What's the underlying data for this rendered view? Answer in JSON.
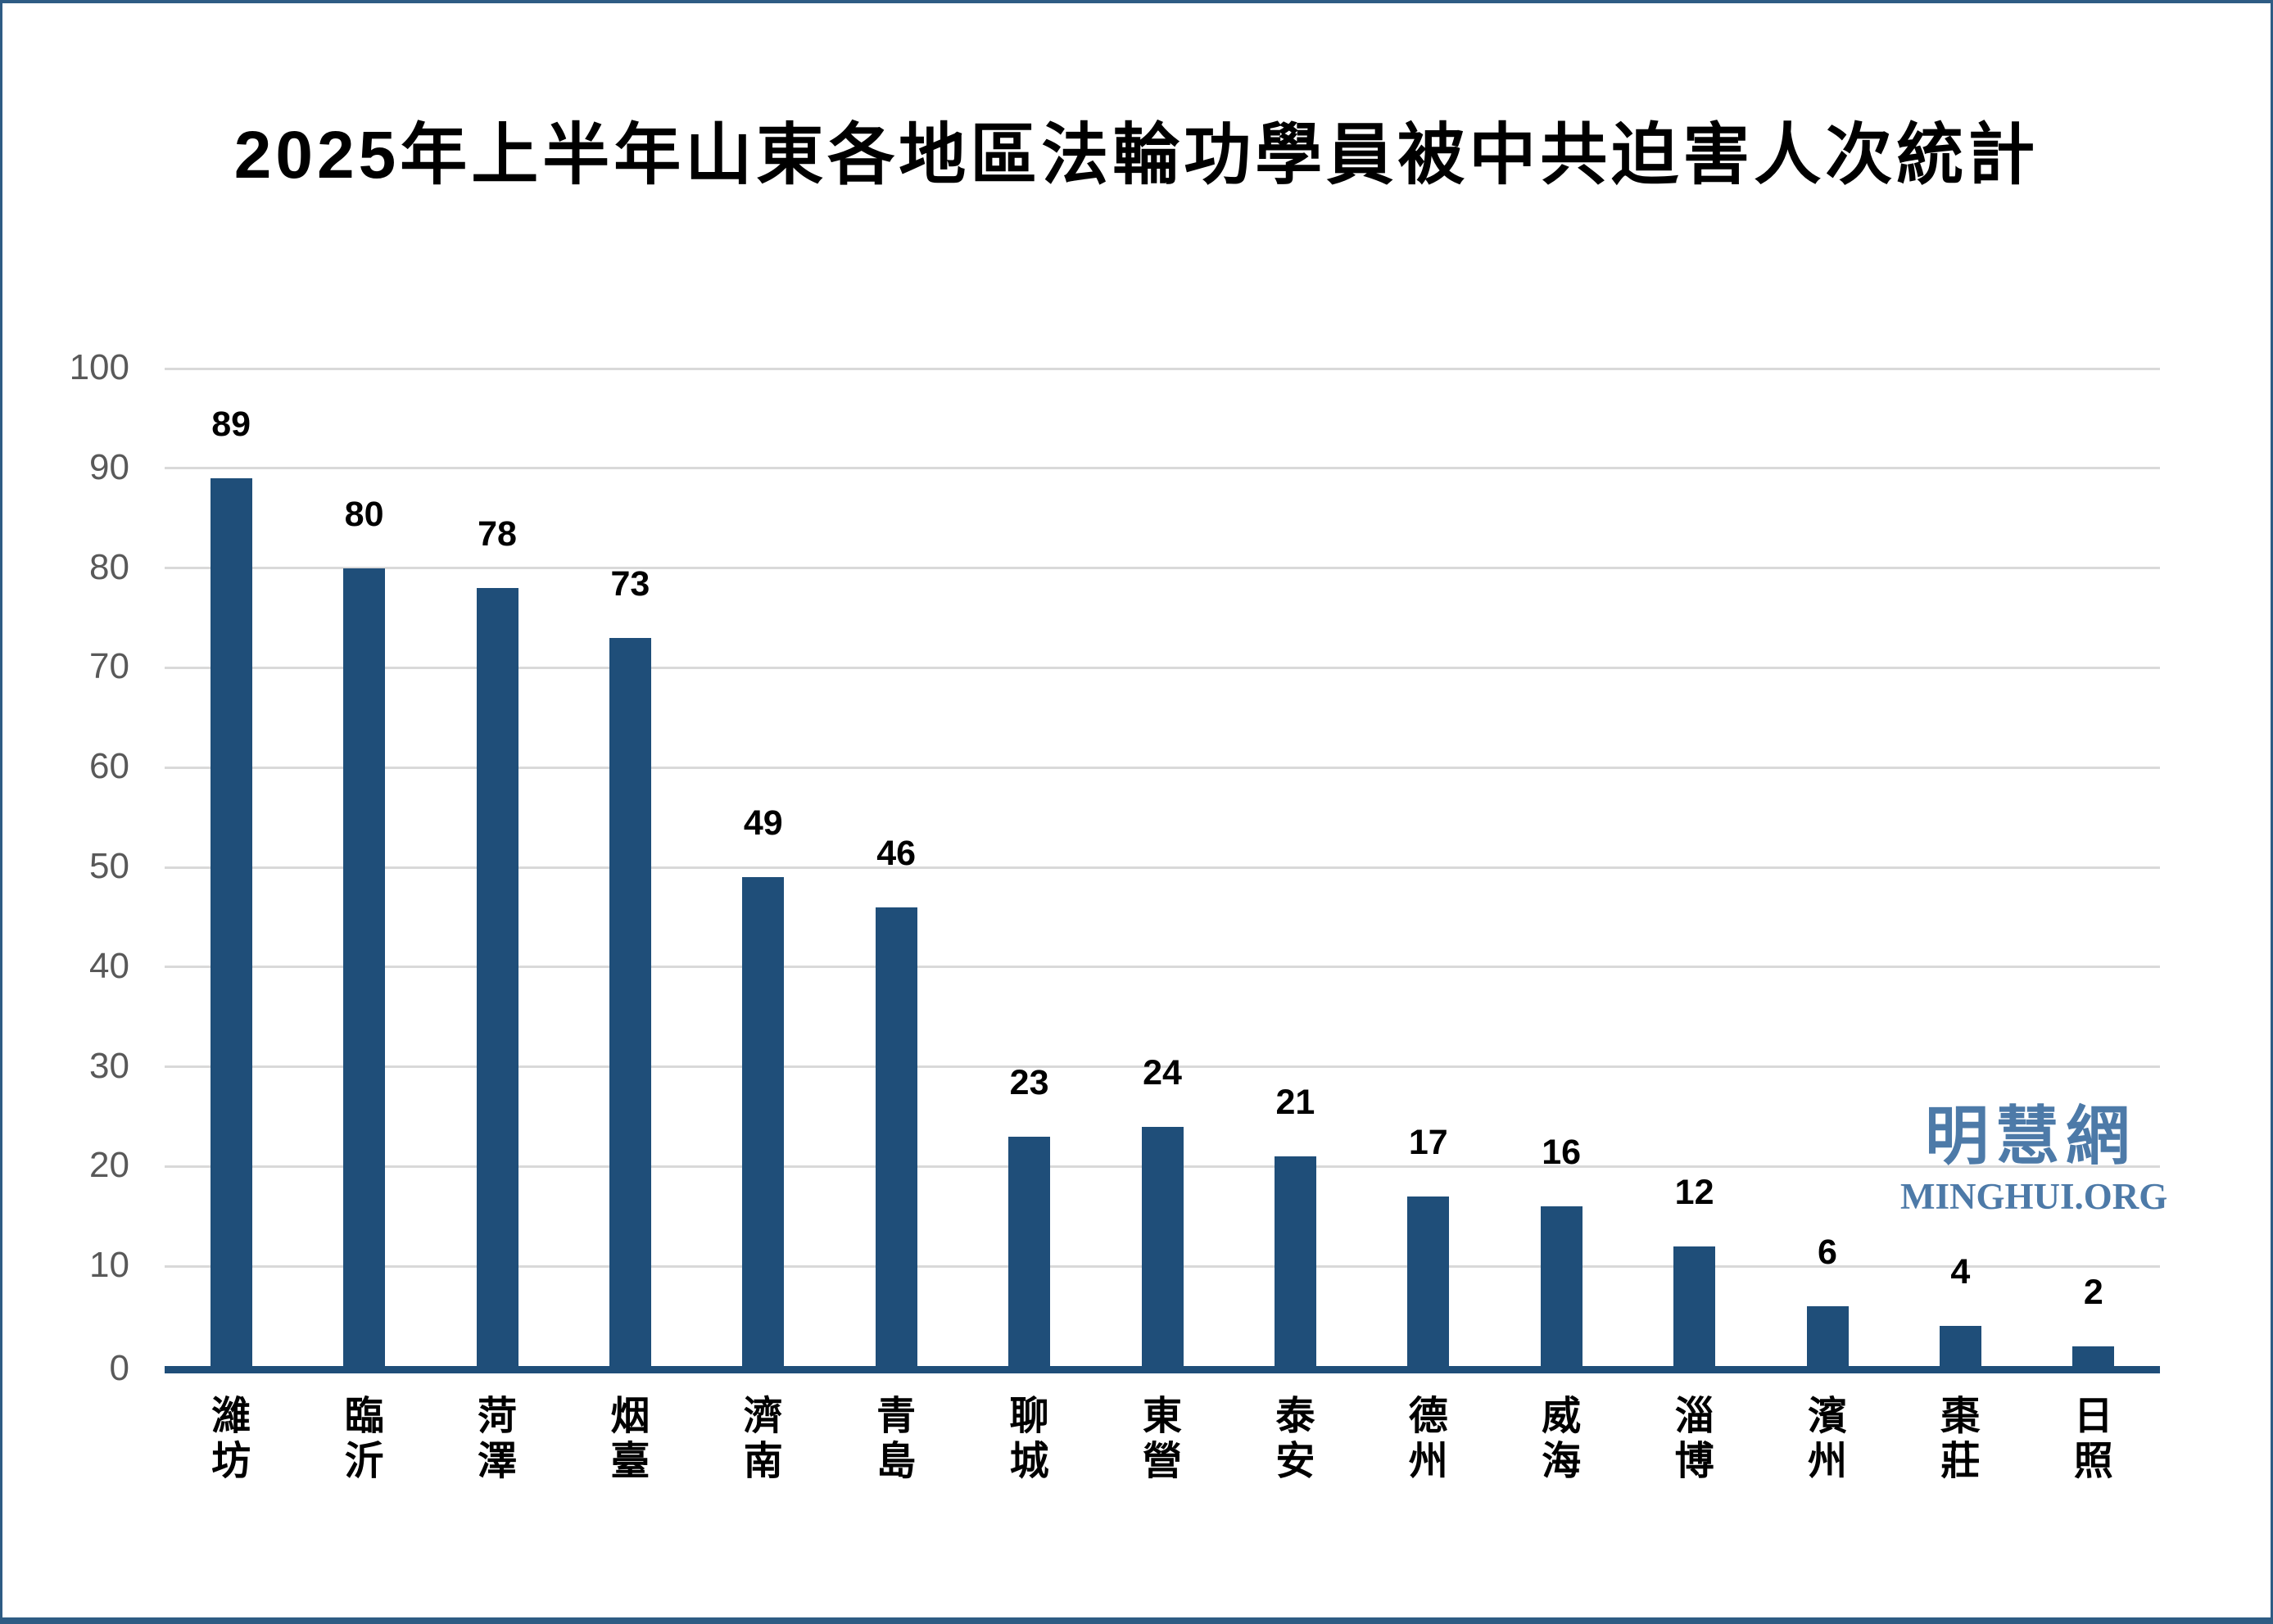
{
  "page": {
    "background": "#ffffff",
    "border_color": "#2e5c84"
  },
  "header": {
    "title": "2025年上半年山東各地區法輪功學員被中共迫害人次統計"
  },
  "watermark": {
    "cjk": "明慧網",
    "latin": "MINGHUI.ORG",
    "color": "#4d7aa8"
  },
  "chart_data": {
    "type": "bar",
    "title": "2025年上半年山東各地區法輪功學員被中共迫害人次統計",
    "categories": [
      "濰坊",
      "臨沂",
      "菏澤",
      "烟臺",
      "濟南",
      "青島",
      "聊城",
      "東營",
      "泰安",
      "德州",
      "威海",
      "淄博",
      "濱州",
      "棗莊",
      "日照"
    ],
    "values": [
      89,
      80,
      78,
      73,
      49,
      46,
      23,
      24,
      21,
      17,
      16,
      12,
      6,
      4,
      2
    ],
    "xlabel": "",
    "ylabel": "",
    "ylim": [
      0,
      100
    ],
    "yticks": [
      0,
      10,
      20,
      30,
      40,
      50,
      60,
      70,
      80,
      90,
      100
    ],
    "grid": true,
    "legend": "none",
    "value_labels_shown": true,
    "bar_color": "#1F4E79",
    "axis_line_color": "#1F4E79",
    "gridline_color": "#d9d9d9",
    "tick_label_color": "#595959",
    "value_label_color": "#000000"
  }
}
